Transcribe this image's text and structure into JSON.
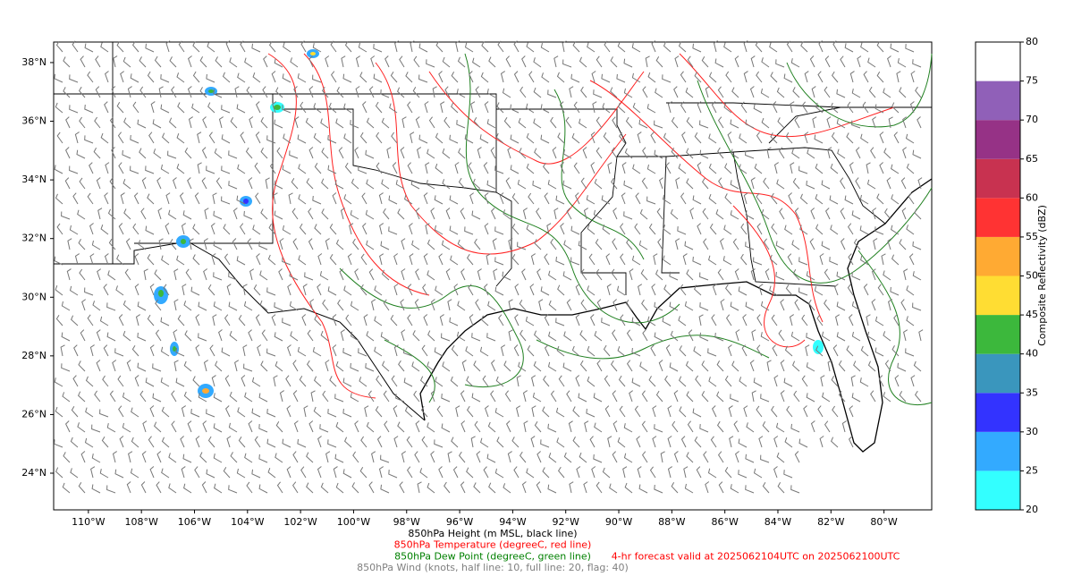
{
  "map": {
    "xlim": [
      -111.31,
      -78.2
    ],
    "ylim": [
      22.75,
      38.7
    ],
    "xticks": [
      {
        "value": -110,
        "label": "110°W"
      },
      {
        "value": -108,
        "label": "108°W"
      },
      {
        "value": -106,
        "label": "106°W"
      },
      {
        "value": -104,
        "label": "104°W"
      },
      {
        "value": -102,
        "label": "102°W"
      },
      {
        "value": -100,
        "label": "100°W"
      },
      {
        "value": -98,
        "label": "98°W"
      },
      {
        "value": -96,
        "label": "96°W"
      },
      {
        "value": -94,
        "label": "94°W"
      },
      {
        "value": -92,
        "label": "92°W"
      },
      {
        "value": -90,
        "label": "90°W"
      },
      {
        "value": -88,
        "label": "88°W"
      },
      {
        "value": -86,
        "label": "86°W"
      },
      {
        "value": -84,
        "label": "84°W"
      },
      {
        "value": -82,
        "label": "82°W"
      },
      {
        "value": -80,
        "label": "80°W"
      }
    ],
    "yticks": [
      {
        "value": 24,
        "label": "24°N"
      },
      {
        "value": 26,
        "label": "26°N"
      },
      {
        "value": 28,
        "label": "28°N"
      },
      {
        "value": 30,
        "label": "30°N"
      },
      {
        "value": 32,
        "label": "32°N"
      },
      {
        "value": 34,
        "label": "34°N"
      },
      {
        "value": 36,
        "label": "36°N"
      },
      {
        "value": 38,
        "label": "38°N"
      }
    ]
  },
  "colorbar": {
    "label": "Composite Reflectivity (dBZ)",
    "lim": [
      20,
      80
    ],
    "ticks": [
      20,
      25,
      30,
      35,
      40,
      45,
      50,
      55,
      60,
      65,
      70,
      75,
      80
    ],
    "colors": [
      "#33ffff",
      "#33aaff",
      "#3333ff",
      "#3a96bd",
      "#3cb83c",
      "#ffdd33",
      "#ffaa33",
      "#ff3333",
      "#c83250",
      "#963286",
      "#9060b8",
      "#ffffff"
    ]
  },
  "captions": [
    {
      "text": "850hPa Height (m MSL, black line)",
      "color": "#000000"
    },
    {
      "text": "850hPa Temperature (degreeC, red line)",
      "color": "#ff0000"
    },
    {
      "text": "850hPa Dew Point (degreeC, green line)",
      "color": "#008000"
    },
    {
      "text": "850hPa Wind (knots, half line: 10, full line: 20, flag: 40)",
      "color": "#808080"
    }
  ],
  "forecast": {
    "text": "4-hr forecast valid at 2025062104UTC on 2025062100UTC",
    "color": "#ff0000"
  }
}
